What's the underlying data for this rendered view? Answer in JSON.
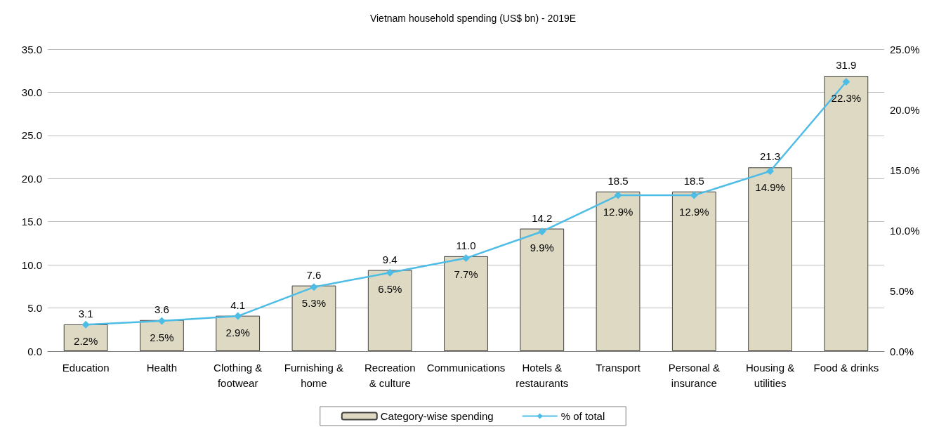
{
  "chart_data": {
    "type": "bar",
    "title": "Vietnam household spending (US$ bn) - 2019E",
    "categories": [
      "Education",
      "Health",
      "Clothing &\nfootwear",
      "Furnishing &\nhome",
      "Recreation\n& culture",
      "Communications",
      "Hotels &\nrestaurants",
      "Transport",
      "Personal &\ninsurance",
      "Housing &\nutilities",
      "Food & drinks"
    ],
    "series": [
      {
        "name": "Category-wise spending",
        "color": "#ddd9c3",
        "values": [
          3.1,
          3.6,
          4.1,
          7.6,
          9.4,
          11.0,
          14.2,
          18.5,
          18.5,
          21.3,
          31.9
        ],
        "value_labels": [
          "3.1",
          "3.6",
          "4.1",
          "7.6",
          "9.4",
          "11.0",
          "14.2",
          "18.5",
          "18.5",
          "21.3",
          "31.9"
        ]
      },
      {
        "name": "% of total",
        "type": "line",
        "axis": "y2",
        "color": "#4dbde6",
        "marker": "diamond",
        "values": [
          2.2,
          2.5,
          2.9,
          5.3,
          6.5,
          7.7,
          9.9,
          12.9,
          12.9,
          14.9,
          22.3
        ],
        "value_labels": [
          "2.2%",
          "2.5%",
          "2.9%",
          "5.3%",
          "6.5%",
          "7.7%",
          "9.9%",
          "12.9%",
          "12.9%",
          "14.9%",
          "22.3%"
        ]
      }
    ],
    "ylim": [
      0,
      35
    ],
    "yticks": [
      {
        "value": 0,
        "label": "0.0"
      },
      {
        "value": 5,
        "label": "5.0"
      },
      {
        "value": 10,
        "label": "10.0"
      },
      {
        "value": 15,
        "label": "15.0"
      },
      {
        "value": 20,
        "label": "20.0"
      },
      {
        "value": 25,
        "label": "25.0"
      },
      {
        "value": 30,
        "label": "30.0"
      },
      {
        "value": 35,
        "label": "35.0"
      }
    ],
    "y2lim": [
      0,
      25
    ],
    "y2ticks": [
      {
        "value": 0,
        "label": "0.0%"
      },
      {
        "value": 5,
        "label": "5.0%"
      },
      {
        "value": 10,
        "label": "10.0%"
      },
      {
        "value": 15,
        "label": "15.0%"
      },
      {
        "value": 20,
        "label": "20.0%"
      },
      {
        "value": 25,
        "label": "25.0%"
      }
    ],
    "grid": "y",
    "legend": "bottom"
  }
}
